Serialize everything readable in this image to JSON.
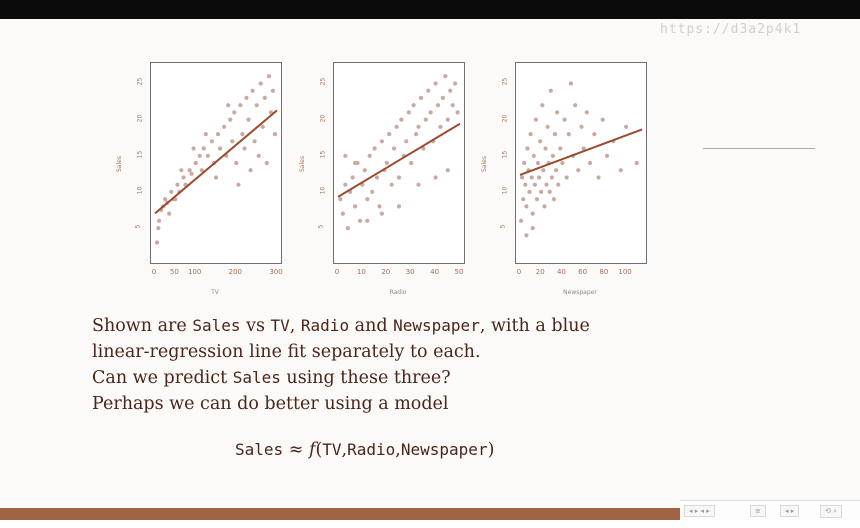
{
  "watermark": "https://d3a2p4k1",
  "plots": [
    {
      "xlabel": "TV",
      "ylabel": "Sales",
      "xticks": [
        "0",
        "50",
        "100",
        "200",
        "300"
      ],
      "yticks": [
        "5",
        "10",
        "15",
        "20",
        "25"
      ]
    },
    {
      "xlabel": "Radio",
      "ylabel": "Sales",
      "xticks": [
        "0",
        "10",
        "20",
        "30",
        "40",
        "50"
      ],
      "yticks": [
        "5",
        "10",
        "15",
        "20",
        "25"
      ]
    },
    {
      "xlabel": "Newspaper",
      "ylabel": "Sales",
      "xticks": [
        "0",
        "20",
        "40",
        "60",
        "80",
        "100"
      ],
      "yticks": [
        "5",
        "10",
        "15",
        "20",
        "25"
      ]
    }
  ],
  "chart_data": [
    {
      "type": "scatter",
      "xlabel": "TV",
      "ylabel": "Sales",
      "xlim": [
        0,
        300
      ],
      "ylim": [
        1,
        27
      ],
      "fit_line": {
        "intercept": 7.03,
        "slope": 0.0475
      },
      "points": [
        [
          10,
          6
        ],
        [
          15,
          7.5
        ],
        [
          20,
          8
        ],
        [
          25,
          9
        ],
        [
          30,
          8.5
        ],
        [
          40,
          10
        ],
        [
          45,
          9
        ],
        [
          55,
          11
        ],
        [
          60,
          10
        ],
        [
          70,
          12
        ],
        [
          75,
          11
        ],
        [
          85,
          13
        ],
        [
          90,
          12.5
        ],
        [
          100,
          14
        ],
        [
          110,
          15
        ],
        [
          115,
          13
        ],
        [
          120,
          16
        ],
        [
          130,
          15
        ],
        [
          140,
          17
        ],
        [
          145,
          14
        ],
        [
          155,
          18
        ],
        [
          160,
          16
        ],
        [
          170,
          19
        ],
        [
          175,
          15
        ],
        [
          185,
          20
        ],
        [
          190,
          17
        ],
        [
          195,
          21
        ],
        [
          200,
          14
        ],
        [
          210,
          22
        ],
        [
          215,
          18
        ],
        [
          225,
          23
        ],
        [
          230,
          20
        ],
        [
          240,
          24
        ],
        [
          245,
          17
        ],
        [
          250,
          22
        ],
        [
          260,
          25
        ],
        [
          265,
          19
        ],
        [
          270,
          23
        ],
        [
          280,
          26
        ],
        [
          285,
          21
        ],
        [
          290,
          24
        ],
        [
          295,
          18
        ],
        [
          5,
          3
        ],
        [
          8,
          5
        ],
        [
          35,
          7
        ],
        [
          50,
          9
        ],
        [
          65,
          13
        ],
        [
          95,
          16
        ],
        [
          125,
          18
        ],
        [
          150,
          12
        ],
        [
          180,
          22
        ],
        [
          205,
          11
        ],
        [
          220,
          16
        ],
        [
          235,
          13
        ],
        [
          255,
          15
        ],
        [
          275,
          14
        ]
      ]
    },
    {
      "type": "scatter",
      "xlabel": "Radio",
      "ylabel": "Sales",
      "xlim": [
        0,
        50
      ],
      "ylim": [
        1,
        27
      ],
      "fit_line": {
        "intercept": 9.31,
        "slope": 0.2025
      },
      "points": [
        [
          1,
          9
        ],
        [
          2,
          7
        ],
        [
          3,
          11
        ],
        [
          4,
          5
        ],
        [
          5,
          10
        ],
        [
          6,
          12
        ],
        [
          7,
          8
        ],
        [
          8,
          14
        ],
        [
          9,
          6
        ],
        [
          10,
          11
        ],
        [
          11,
          13
        ],
        [
          12,
          9
        ],
        [
          13,
          15
        ],
        [
          14,
          10
        ],
        [
          15,
          16
        ],
        [
          16,
          12
        ],
        [
          17,
          8
        ],
        [
          18,
          17
        ],
        [
          19,
          13
        ],
        [
          20,
          14
        ],
        [
          21,
          18
        ],
        [
          22,
          11
        ],
        [
          23,
          16
        ],
        [
          24,
          19
        ],
        [
          25,
          12
        ],
        [
          26,
          20
        ],
        [
          27,
          15
        ],
        [
          28,
          17
        ],
        [
          29,
          21
        ],
        [
          30,
          14
        ],
        [
          31,
          22
        ],
        [
          32,
          18
        ],
        [
          33,
          19
        ],
        [
          34,
          23
        ],
        [
          35,
          16
        ],
        [
          36,
          20
        ],
        [
          37,
          24
        ],
        [
          38,
          21
        ],
        [
          39,
          17
        ],
        [
          40,
          25
        ],
        [
          41,
          22
        ],
        [
          42,
          19
        ],
        [
          43,
          23
        ],
        [
          44,
          26
        ],
        [
          45,
          20
        ],
        [
          46,
          24
        ],
        [
          47,
          22
        ],
        [
          48,
          25
        ],
        [
          49,
          21
        ],
        [
          3,
          15
        ],
        [
          7,
          14
        ],
        [
          12,
          6
        ],
        [
          18,
          7
        ],
        [
          25,
          8
        ],
        [
          33,
          11
        ],
        [
          40,
          12
        ],
        [
          45,
          13
        ]
      ]
    },
    {
      "type": "scatter",
      "xlabel": "Newspaper",
      "ylabel": "Sales",
      "xlim": [
        0,
        115
      ],
      "ylim": [
        1,
        27
      ],
      "fit_line": {
        "intercept": 12.35,
        "slope": 0.0547
      },
      "points": [
        [
          2,
          12
        ],
        [
          3,
          9
        ],
        [
          4,
          14
        ],
        [
          5,
          11
        ],
        [
          6,
          8
        ],
        [
          7,
          16
        ],
        [
          8,
          13
        ],
        [
          9,
          10
        ],
        [
          10,
          18
        ],
        [
          11,
          12
        ],
        [
          12,
          7
        ],
        [
          13,
          15
        ],
        [
          14,
          11
        ],
        [
          15,
          20
        ],
        [
          16,
          9
        ],
        [
          17,
          14
        ],
        [
          18,
          12
        ],
        [
          19,
          17
        ],
        [
          20,
          10
        ],
        [
          21,
          22
        ],
        [
          22,
          13
        ],
        [
          23,
          8
        ],
        [
          24,
          16
        ],
        [
          25,
          11
        ],
        [
          26,
          19
        ],
        [
          27,
          14
        ],
        [
          28,
          10
        ],
        [
          29,
          24
        ],
        [
          30,
          12
        ],
        [
          31,
          15
        ],
        [
          32,
          9
        ],
        [
          33,
          18
        ],
        [
          34,
          13
        ],
        [
          35,
          21
        ],
        [
          36,
          11
        ],
        [
          38,
          16
        ],
        [
          40,
          14
        ],
        [
          42,
          20
        ],
        [
          44,
          12
        ],
        [
          46,
          18
        ],
        [
          48,
          25
        ],
        [
          50,
          15
        ],
        [
          52,
          22
        ],
        [
          55,
          13
        ],
        [
          58,
          19
        ],
        [
          60,
          16
        ],
        [
          63,
          21
        ],
        [
          66,
          14
        ],
        [
          70,
          18
        ],
        [
          74,
          12
        ],
        [
          78,
          20
        ],
        [
          82,
          15
        ],
        [
          88,
          17
        ],
        [
          95,
          13
        ],
        [
          100,
          19
        ],
        [
          110,
          14
        ],
        [
          1,
          6
        ],
        [
          6,
          4
        ],
        [
          12,
          5
        ]
      ]
    }
  ],
  "text_lines": [
    [
      {
        "t": "Shown are "
      },
      {
        "t": "Sales",
        "mono": true
      },
      {
        "t": " vs "
      },
      {
        "t": "TV",
        "mono": true
      },
      {
        "t": ", "
      },
      {
        "t": "Radio",
        "mono": true
      },
      {
        "t": " and "
      },
      {
        "t": "Newspaper",
        "mono": true
      },
      {
        "t": ", with a blue"
      }
    ],
    [
      {
        "t": "linear-regression line fit separately to each."
      }
    ],
    [
      {
        "t": "Can we predict "
      },
      {
        "t": "Sales",
        "mono": true
      },
      {
        "t": " using these three?"
      }
    ],
    [
      {
        "t": "Perhaps we can do better using a model"
      }
    ]
  ],
  "formula": {
    "lhs": "Sales",
    "approx": " ≈ ",
    "f": "f",
    "open": "(",
    "args": [
      "TV",
      "Radio",
      "Newspaper"
    ],
    "close": ")"
  },
  "nav": [
    "◂ ▸ ◂ ▸",
    "≡",
    "◂ ▸",
    "⟲ ⌕"
  ],
  "colors": {
    "point": "#c9a9a0",
    "line": "#9c4a2e",
    "text": "#4a2519",
    "footer": "#a06343"
  }
}
